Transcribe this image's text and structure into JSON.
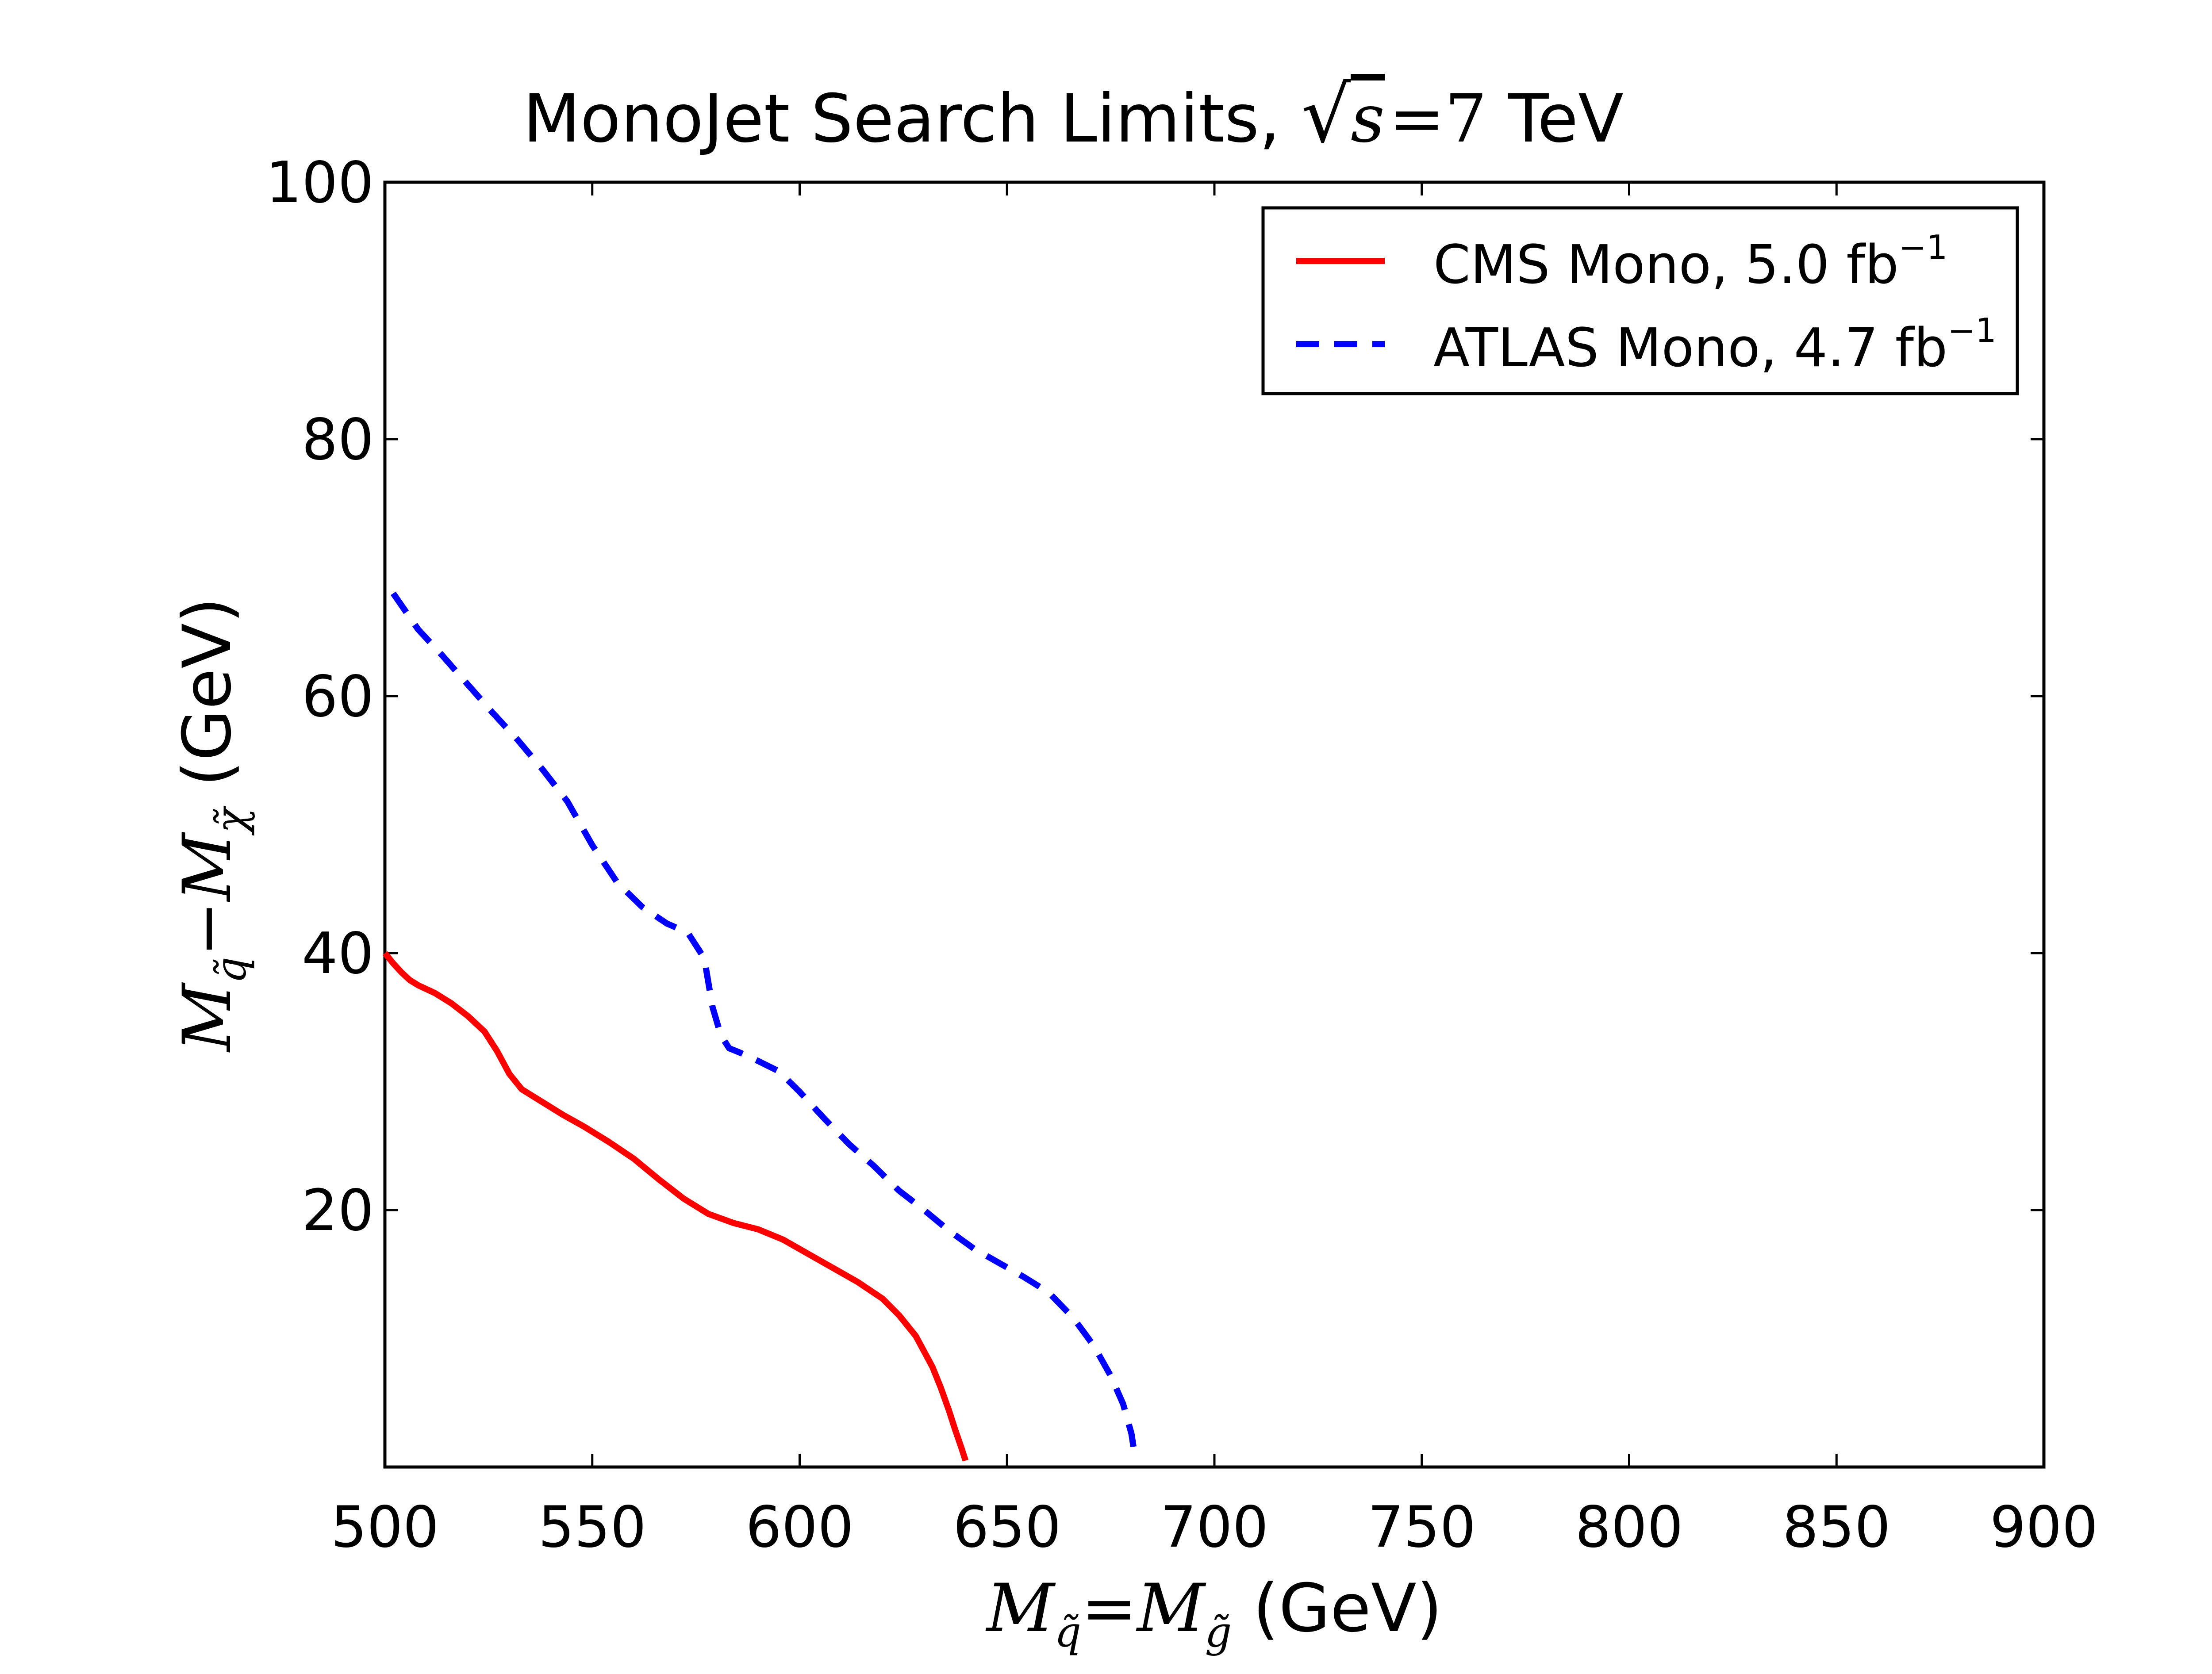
{
  "chart_data": {
    "type": "line",
    "title": {
      "prefix": "MonoJet Search Limits, ",
      "sqrt_var": "s",
      "equals": "=",
      "value": "7",
      "suffix": " TeV"
    },
    "xlabel": {
      "m1": "M",
      "sub1": "q̃",
      "equals": "=",
      "m2": "M",
      "sub2": "g̃",
      "unit": " (GeV)"
    },
    "ylabel": {
      "m1": "M",
      "sub1": "q̃",
      "minus": "−",
      "m2": "M",
      "sub2": "χ̃",
      "unit": " (GeV)"
    },
    "xlim": [
      500,
      900
    ],
    "ylim": [
      0,
      100
    ],
    "xticks": [
      "500",
      "550",
      "600",
      "650",
      "700",
      "750",
      "800",
      "850",
      "900"
    ],
    "yticks": [
      "20",
      "40",
      "60",
      "80",
      "100"
    ],
    "legend_position": "top-right",
    "series": [
      {
        "name": "CMS Mono, 5.0 fb",
        "sup": "−1",
        "color": "#ff0000",
        "style": "solid",
        "x": [
          500,
          502,
          504,
          506,
          508,
          512,
          516,
          520,
          524,
          527,
          530,
          533,
          538,
          543,
          548,
          554,
          560,
          566,
          572,
          578,
          584,
          590,
          596,
          602,
          608,
          614,
          620,
          624,
          628,
          632,
          634,
          636,
          637.5,
          639,
          640
        ],
        "y": [
          40,
          39.2,
          38.5,
          37.9,
          37.5,
          36.9,
          36.1,
          35.1,
          33.9,
          32.4,
          30.6,
          29.4,
          28.4,
          27.4,
          26.5,
          25.3,
          24.0,
          22.4,
          20.9,
          19.7,
          19.0,
          18.5,
          17.7,
          16.6,
          15.5,
          14.4,
          13.1,
          11.8,
          10.2,
          7.8,
          6.2,
          4.4,
          2.9,
          1.5,
          0.5
        ]
      },
      {
        "name": "ATLAS Mono, 4.7 fb",
        "sup": "−1",
        "color": "#0000ff",
        "style": "dashed",
        "x": [
          502,
          508,
          514,
          520,
          526,
          532,
          538,
          544,
          550,
          556,
          562,
          568,
          573,
          577,
          579,
          581,
          583,
          586,
          590,
          595,
          600,
          606,
          612,
          618,
          624,
          630,
          636,
          642,
          648,
          654,
          660,
          666,
          671,
          675,
          678,
          680,
          681
        ],
        "y": [
          68,
          65.2,
          63.1,
          60.9,
          58.7,
          56.6,
          54.3,
          51.8,
          48.4,
          45.5,
          43.6,
          42.3,
          41.6,
          39.6,
          35.8,
          33.6,
          32.6,
          32.2,
          31.6,
          30.8,
          29.2,
          27.1,
          25.1,
          23.4,
          21.5,
          20.0,
          18.4,
          17.0,
          15.9,
          14.8,
          13.6,
          11.6,
          9.4,
          7.1,
          4.9,
          2.6,
          0.5
        ]
      }
    ]
  }
}
